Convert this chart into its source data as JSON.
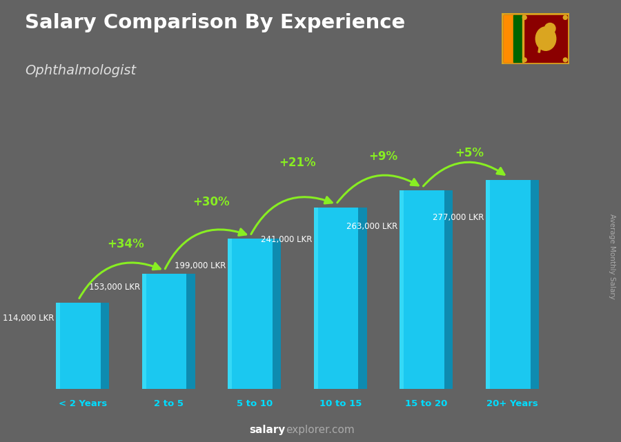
{
  "title": "Salary Comparison By Experience",
  "subtitle": "Ophthalmologist",
  "ylabel": "Average Monthly Salary",
  "footer_salary": "salary",
  "footer_explorer": "explorer",
  "footer_com": ".com",
  "categories": [
    "< 2 Years",
    "2 to 5",
    "5 to 10",
    "10 to 15",
    "15 to 20",
    "20+ Years"
  ],
  "values": [
    114000,
    153000,
    199000,
    241000,
    263000,
    277000
  ],
  "labels": [
    "114,000 LKR",
    "153,000 LKR",
    "199,000 LKR",
    "241,000 LKR",
    "263,000 LKR",
    "277,000 LKR"
  ],
  "pct_changes": [
    "+34%",
    "+30%",
    "+21%",
    "+9%",
    "+5%"
  ],
  "bar_face_color": "#1BC8F0",
  "bar_side_color": "#0E8BB0",
  "bar_top_color": "#55DDFF",
  "background_color": "#636363",
  "title_color": "#ffffff",
  "subtitle_color": "#e0e0e0",
  "label_color": "#ffffff",
  "pct_color": "#88ee22",
  "arrow_color": "#88ee22",
  "category_color": "#00ddff",
  "footer_color": "#aaaaaa",
  "footer_bold_color": "#ffffff",
  "ylabel_color": "#aaaaaa",
  "ylim": [
    0,
    340000
  ],
  "bar_width": 0.52,
  "bar_depth": 0.1,
  "flag_colors": {
    "border": "#DAA520",
    "left_stripe1": "#FF8C00",
    "left_stripe2": "#006400",
    "right_bg": "#8B0000",
    "lion": "#DAA520"
  }
}
